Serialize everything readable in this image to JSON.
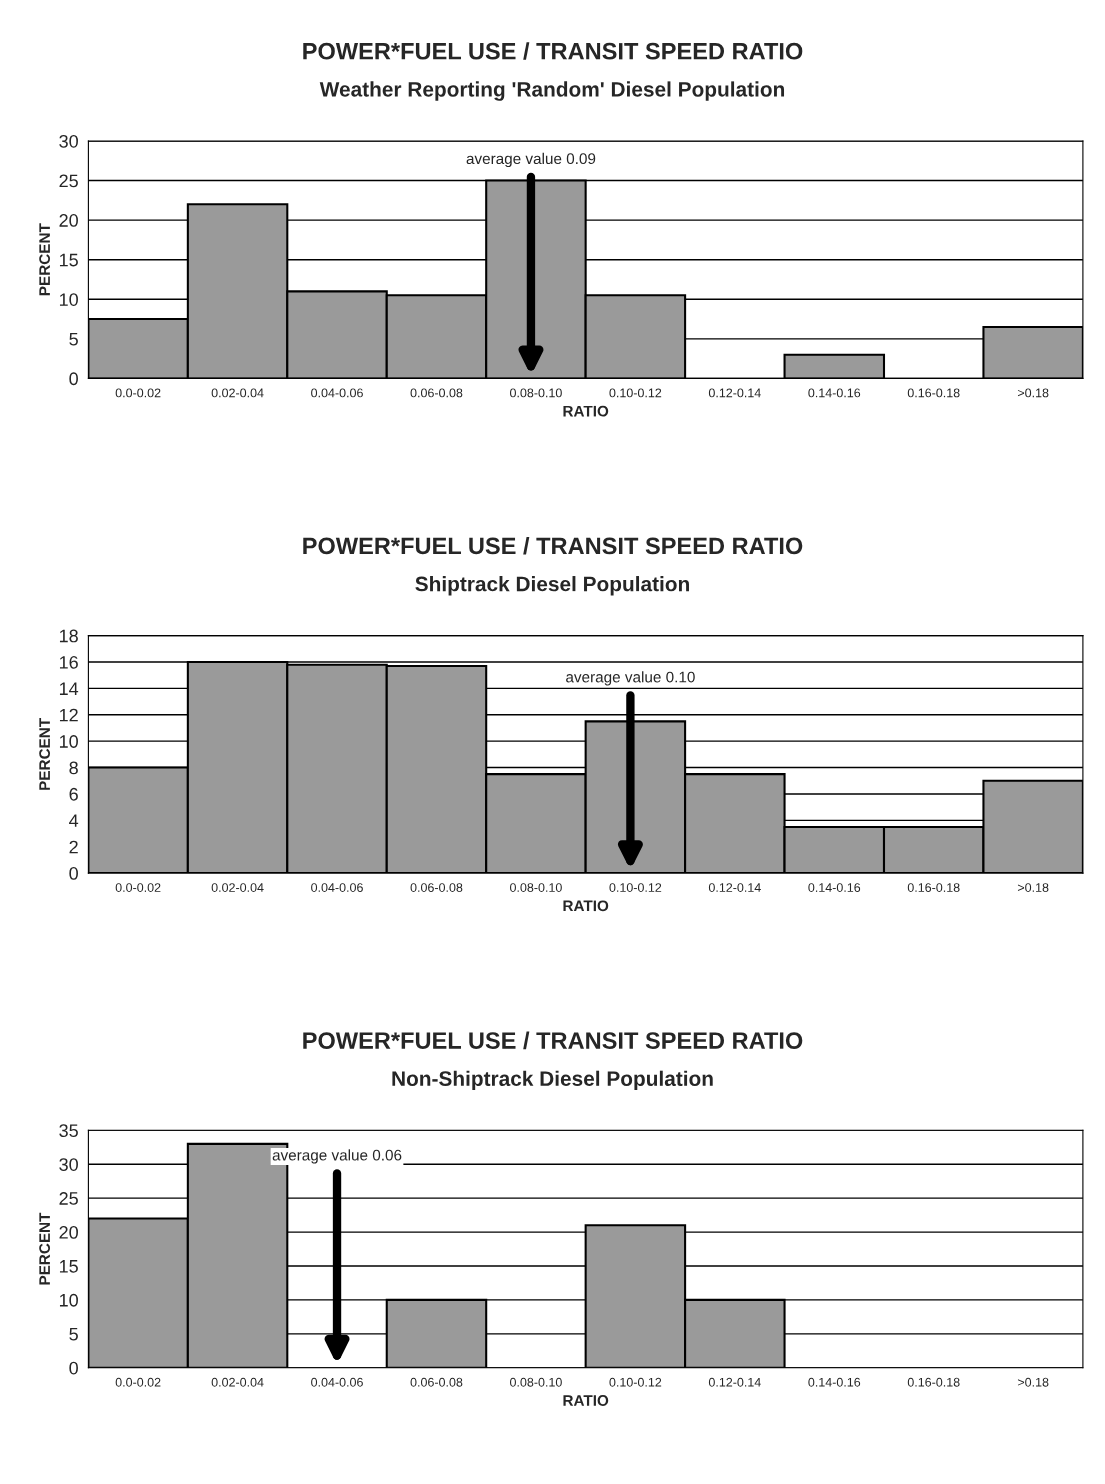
{
  "chart_data": [
    {
      "type": "bar",
      "title": "POWER*FUEL USE / TRANSIT SPEED RATIO",
      "subtitle": "Weather Reporting 'Random' Diesel Population",
      "xlabel": "RATIO",
      "ylabel": "PERCENT",
      "categories": [
        "0.0-0.02",
        "0.02-0.04",
        "0.04-0.06",
        "0.06-0.08",
        "0.08-0.10",
        "0.10-0.12",
        "0.12-0.14",
        "0.14-0.16",
        "0.16-0.18",
        ">0.18"
      ],
      "color": "#9a9a9a",
      "values": [
        7.5,
        22,
        11,
        10.5,
        25,
        10.5,
        0,
        3,
        0,
        6.5
      ],
      "ylim": [
        0,
        30
      ],
      "yticks": [
        0,
        5,
        10,
        15,
        20,
        25,
        30
      ],
      "grid": "y",
      "annotations": [
        "average value 0.09"
      ]
    },
    {
      "type": "bar",
      "title": "POWER*FUEL USE / TRANSIT SPEED RATIO",
      "subtitle": "Shiptrack Diesel Population",
      "xlabel": "RATIO",
      "ylabel": "PERCENT",
      "categories": [
        "0.0-0.02",
        "0.02-0.04",
        "0.04-0.06",
        "0.06-0.08",
        "0.08-0.10",
        "0.10-0.12",
        "0.12-0.14",
        "0.14-0.16",
        "0.16-0.18",
        ">0.18"
      ],
      "color": "#9a9a9a",
      "values": [
        8,
        16,
        15.8,
        15.7,
        7.5,
        11.5,
        7.5,
        3.5,
        3.5,
        7
      ],
      "ylim": [
        0,
        18
      ],
      "yticks": [
        0,
        2,
        4,
        6,
        8,
        10,
        12,
        14,
        16,
        18
      ],
      "grid": "y",
      "annotations": [
        "average value 0.10"
      ]
    },
    {
      "type": "bar",
      "title": "POWER*FUEL USE / TRANSIT SPEED RATIO",
      "subtitle": "Non-Shiptrack Diesel Population",
      "xlabel": "RATIO",
      "ylabel": "PERCENT",
      "categories": [
        "0.0-0.02",
        "0.02-0.04",
        "0.04-0.06",
        "0.06-0.08",
        "0.08-0.10",
        "0.10-0.12",
        "0.12-0.14",
        "0.14-0.16",
        "0.16-0.18",
        ">0.18"
      ],
      "color": "#9a9a9a",
      "values": [
        22,
        33,
        0,
        10,
        0,
        21,
        10,
        0,
        0,
        0
      ],
      "ylim": [
        0,
        35
      ],
      "yticks": [
        0,
        5,
        10,
        15,
        20,
        25,
        30,
        35
      ],
      "grid": "y",
      "annotations": [
        "average value 0.06"
      ]
    }
  ]
}
